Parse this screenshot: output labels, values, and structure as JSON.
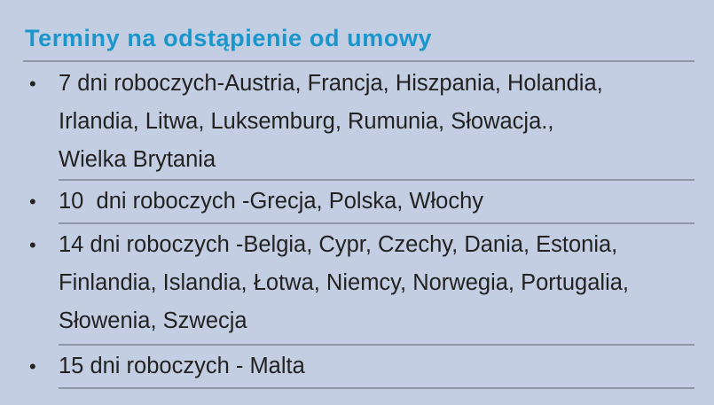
{
  "title": "Terminy na odstąpienie od umowy",
  "items": [
    "7 dni roboczych-Austria, Francja, Hiszpania, Holandia, Irlandia, Litwa, Luksemburg, Rumunia, Słowacja., Wielka Brytania",
    "10  dni roboczych -Grecja, Polska, Włochy",
    "14 dni roboczych -Belgia, Cypr, Czechy, Dania, Estonia, Finlandia, Islandia, Łotwa, Niemcy, Norwegia, Portugalia, Słowenia, Szwecja",
    "15 dni roboczych - Malta"
  ],
  "colors": {
    "background": "#c3cee2",
    "title": "#1a96cc",
    "rule": "#8e96a4"
  }
}
